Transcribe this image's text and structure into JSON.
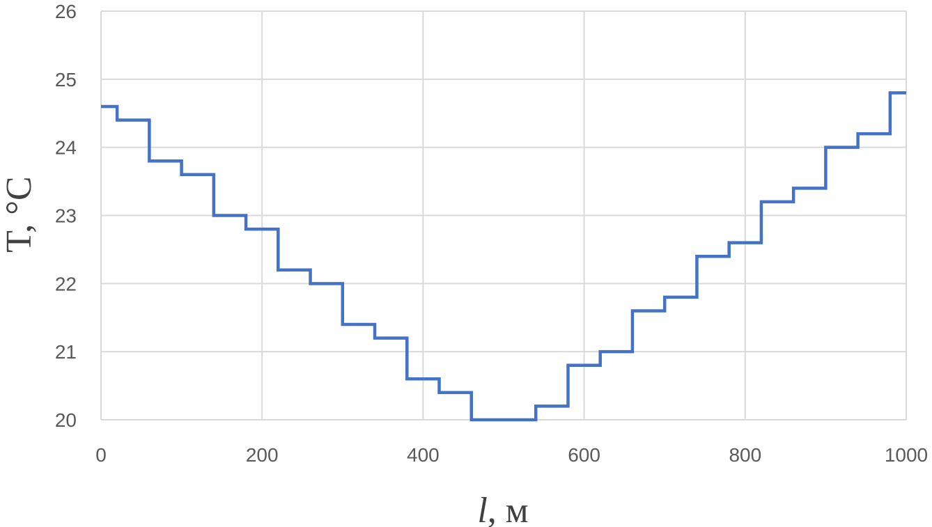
{
  "chart_data": {
    "type": "line",
    "step": true,
    "title": "",
    "xlabel": "l, м",
    "xlabel_var": "l",
    "xlabel_unit": ", м",
    "ylabel": "T, °C",
    "xlim": [
      0,
      1000
    ],
    "ylim": [
      20,
      26
    ],
    "xticks": [
      0,
      200,
      400,
      600,
      800,
      1000
    ],
    "yticks": [
      20,
      21,
      22,
      23,
      24,
      25,
      26
    ],
    "grid": true,
    "legend": "none",
    "series": [
      {
        "color": "#4472c4",
        "x": [
          0,
          20,
          20,
          60,
          60,
          100,
          100,
          140,
          140,
          180,
          180,
          220,
          220,
          260,
          260,
          300,
          300,
          340,
          340,
          380,
          380,
          420,
          420,
          460,
          460,
          540,
          540,
          580,
          580,
          620,
          620,
          660,
          660,
          700,
          700,
          740,
          740,
          780,
          780,
          820,
          820,
          860,
          860,
          900,
          900,
          940,
          940,
          980,
          980,
          1000
        ],
        "y": [
          24.6,
          24.6,
          24.4,
          24.4,
          23.8,
          23.8,
          23.6,
          23.6,
          23.0,
          23.0,
          22.8,
          22.8,
          22.2,
          22.2,
          22.0,
          22.0,
          21.4,
          21.4,
          21.2,
          21.2,
          20.6,
          20.6,
          20.4,
          20.4,
          20.0,
          20.0,
          20.2,
          20.2,
          20.8,
          20.8,
          21.0,
          21.0,
          21.6,
          21.6,
          21.8,
          21.8,
          22.4,
          22.4,
          22.6,
          22.6,
          23.2,
          23.2,
          23.4,
          23.4,
          24.0,
          24.0,
          24.2,
          24.2,
          24.8,
          24.8
        ]
      }
    ]
  }
}
